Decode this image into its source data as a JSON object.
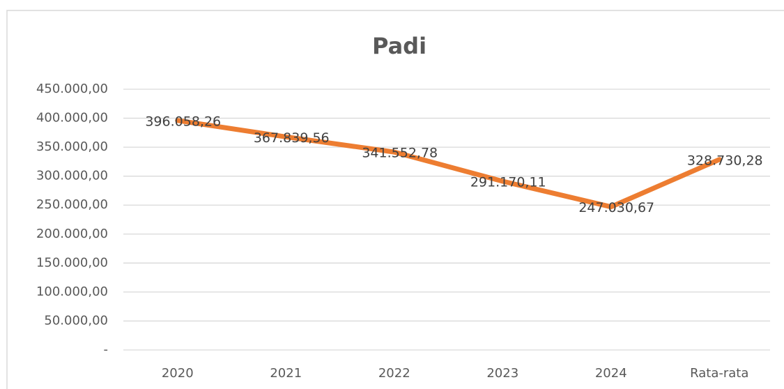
{
  "chart_data": {
    "type": "line",
    "title": "Padi",
    "categories": [
      "2020",
      "2021",
      "2022",
      "2023",
      "2024",
      "Rata-rata"
    ],
    "series": [
      {
        "name": "Padi",
        "color": "#ed7d31",
        "values": [
          396058.26,
          367839.56,
          341552.78,
          291170.11,
          247030.67,
          328730.28
        ],
        "value_labels": [
          "396.058,26",
          "367.839,56",
          "341.552,78",
          "291.170,11",
          "247.030,67",
          "328.730,28"
        ]
      }
    ],
    "ylim": [
      0,
      450000
    ],
    "yticks": [
      {
        "value": 0,
        "label": "-"
      },
      {
        "value": 50000,
        "label": "50.000,00"
      },
      {
        "value": 100000,
        "label": "100.000,00"
      },
      {
        "value": 150000,
        "label": "150.000,00"
      },
      {
        "value": 200000,
        "label": "200.000,00"
      },
      {
        "value": 250000,
        "label": "250.000,00"
      },
      {
        "value": 300000,
        "label": "300.000,00"
      },
      {
        "value": 350000,
        "label": "350.000,00"
      },
      {
        "value": 400000,
        "label": "400.000,00"
      },
      {
        "value": 450000,
        "label": "450.000,00"
      }
    ],
    "grid": true
  }
}
